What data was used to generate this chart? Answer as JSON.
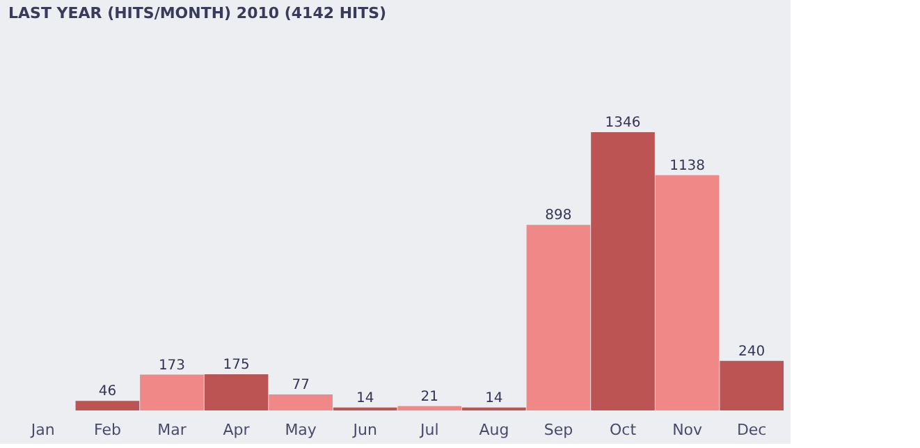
{
  "chart_data": {
    "type": "bar",
    "title": "LAST YEAR (HITS/MONTH) 2010 (4142 HITS)",
    "categories": [
      "Jan",
      "Feb",
      "Mar",
      "Apr",
      "May",
      "Jun",
      "Jul",
      "Aug",
      "Sep",
      "Oct",
      "Nov",
      "Dec"
    ],
    "values": [
      0,
      46,
      173,
      175,
      77,
      14,
      21,
      14,
      898,
      1346,
      1138,
      240
    ],
    "value_labels": [
      null,
      "46",
      "173",
      "175",
      "77",
      "14",
      "21",
      "14",
      "898",
      "1346",
      "1138",
      "240"
    ],
    "colors": [
      "#ef8887",
      "#bb5453",
      "#ef8887",
      "#bb5453",
      "#ef8887",
      "#bb5453",
      "#ef8887",
      "#bb5453",
      "#ef8887",
      "#bb5453",
      "#ef8887",
      "#bb5453"
    ],
    "ylim": [
      0,
      1346
    ],
    "grid": false
  }
}
